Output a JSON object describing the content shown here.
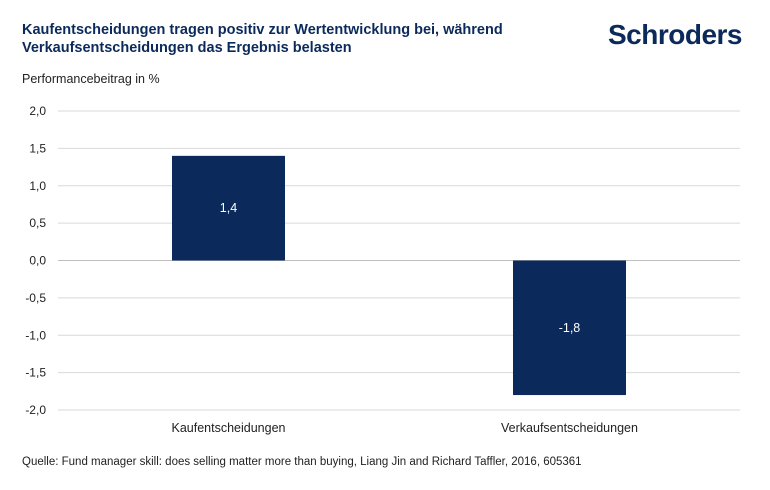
{
  "title_lines": [
    "Kaufentscheidungen tragen positiv zur Wertentwicklung bei, während",
    "Verkaufsentscheidungen das Ergebnis belasten"
  ],
  "logo_text": "Schroders",
  "source": "Quelle: Fund manager skill: does selling matter more than buying, Liang Jin and Richard Taffler, 2016, 605361",
  "colors": {
    "bar": "#0b2a5b",
    "title": "#0b2a5b",
    "grid": "#d9d9d9",
    "zero_line": "#bfbfbf"
  },
  "chart_data": {
    "type": "bar",
    "title": "Kaufentscheidungen tragen positiv zur Wertentwicklung bei, während Verkaufsentscheidungen das Ergebnis belasten",
    "ylabel": "Performancebeitrag in %",
    "xlabel": "",
    "categories": [
      "Kaufentscheidungen",
      "Verkaufsentscheidungen"
    ],
    "values": [
      1.4,
      -1.8
    ],
    "data_labels": [
      "1,4",
      "-1,8"
    ],
    "ylim": [
      -2.0,
      2.0
    ],
    "yticks": [
      2.0,
      1.5,
      1.0,
      0.5,
      0.0,
      -0.5,
      -1.0,
      -1.5,
      -2.0
    ],
    "ytick_labels": [
      "2,0",
      "1,5",
      "1,0",
      "0,5",
      "0,0",
      "-0,5",
      "-1,0",
      "-1,5",
      "-2,0"
    ],
    "grid": true,
    "legend": false
  }
}
